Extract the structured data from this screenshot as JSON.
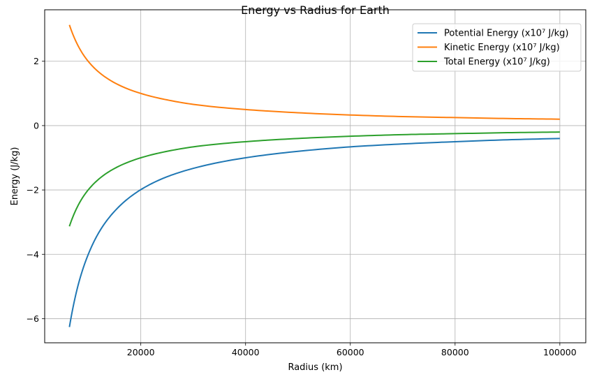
{
  "chart_data": {
    "type": "line",
    "title": "Energy vs Radius for Earth",
    "xlabel": "Radius (km)",
    "ylabel": "Energy (J/kg)",
    "xlim": [
      1650,
      104950
    ],
    "ylim": [
      -6.75,
      3.6
    ],
    "xticks": [
      20000,
      40000,
      60000,
      80000,
      100000
    ],
    "xtick_labels": [
      "20000",
      "40000",
      "60000",
      "80000",
      "100000"
    ],
    "yticks": [
      -6,
      -4,
      -2,
      0,
      2
    ],
    "ytick_labels": [
      "−6",
      "−4",
      "−2",
      "0",
      "2"
    ],
    "grid": true,
    "legend_position": "top-right",
    "x": [
      6371,
      7000,
      8000,
      9000,
      10000,
      12000,
      15000,
      20000,
      25000,
      30000,
      40000,
      50000,
      60000,
      70000,
      80000,
      90000,
      100000
    ],
    "series": [
      {
        "name": "Potential Energy (x10⁷ J/kg)",
        "color": "#1f77b4",
        "values": [
          -6.26,
          -5.7,
          -4.98,
          -4.43,
          -3.99,
          -3.32,
          -2.66,
          -1.99,
          -1.59,
          -1.33,
          -1.0,
          -0.8,
          -0.66,
          -0.57,
          -0.5,
          -0.44,
          -0.4
        ]
      },
      {
        "name": "Kinetic Energy (x10⁷ J/kg)",
        "color": "#ff7f0e",
        "values": [
          3.13,
          2.85,
          2.49,
          2.21,
          1.99,
          1.66,
          1.33,
          1.0,
          0.8,
          0.66,
          0.5,
          0.4,
          0.33,
          0.28,
          0.25,
          0.22,
          0.2
        ]
      },
      {
        "name": "Total Energy (x10⁷ J/kg)",
        "color": "#2ca02c",
        "values": [
          -3.13,
          -2.85,
          -2.49,
          -2.21,
          -1.99,
          -1.66,
          -1.33,
          -1.0,
          -0.8,
          -0.66,
          -0.5,
          -0.4,
          -0.33,
          -0.28,
          -0.25,
          -0.22,
          -0.2
        ]
      }
    ]
  }
}
